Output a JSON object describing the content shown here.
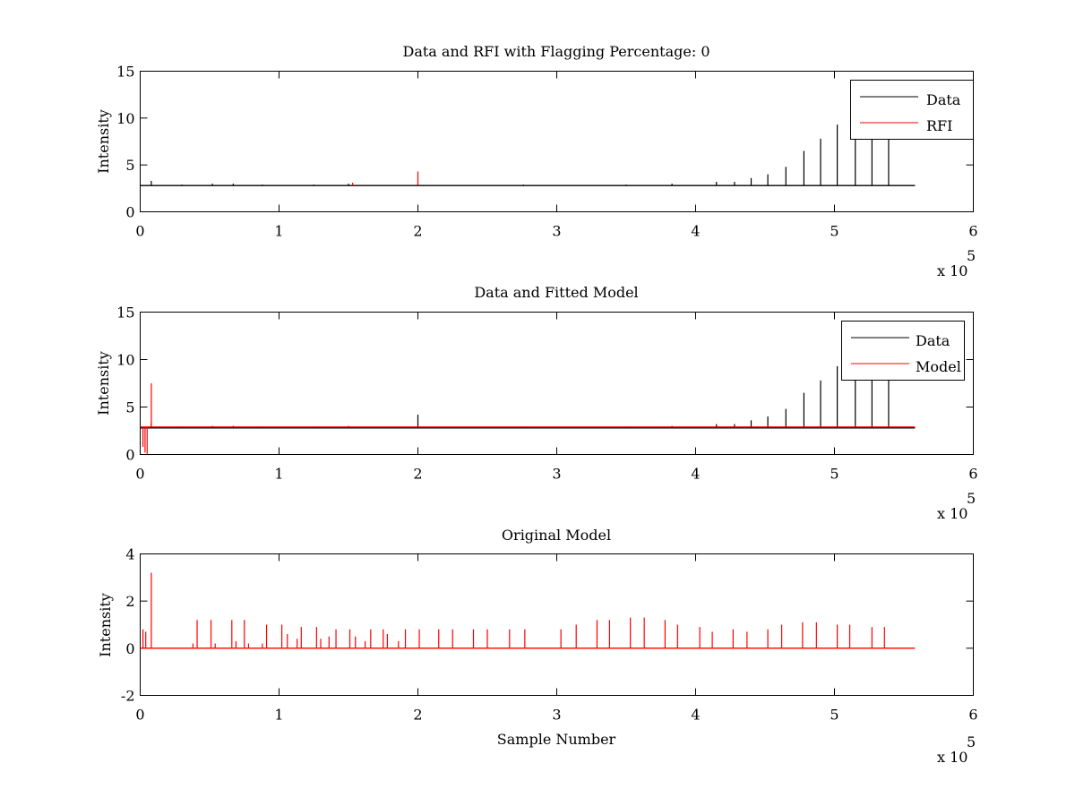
{
  "chart_data": [
    {
      "type": "line",
      "title": "Data and RFI with Flagging Percentage: 0",
      "xlabel": "",
      "ylabel": "Intensity",
      "xlim": [
        0,
        600000
      ],
      "ylim": [
        0,
        15
      ],
      "x_ticks": [
        0,
        1,
        2,
        3,
        4,
        5,
        6
      ],
      "y_ticks": [
        0,
        5,
        10,
        15
      ],
      "x_multiplier": "x 10",
      "x_multiplier_exp": "5",
      "grid": false,
      "legend": {
        "placement": "top-right",
        "entries": [
          {
            "label": "Data",
            "color": "#000000"
          },
          {
            "label": "RFI",
            "color": "#ff0000"
          }
        ]
      },
      "series": [
        {
          "name": "Data",
          "color": "#000000",
          "baseline": 2.8,
          "x_end": 558000,
          "spikes": [
            [
              8000,
              3.3
            ],
            [
              30000,
              2.9
            ],
            [
              52000,
              3.0
            ],
            [
              67000,
              3.0
            ],
            [
              88000,
              2.9
            ],
            [
              125000,
              2.9
            ],
            [
              150000,
              3.0
            ],
            [
              200000,
              3.0
            ],
            [
              276000,
              2.9
            ],
            [
              350000,
              2.9
            ],
            [
              383000,
              3.0
            ],
            [
              415000,
              3.2
            ],
            [
              428000,
              3.2
            ],
            [
              440000,
              3.6
            ],
            [
              452000,
              4.0
            ],
            [
              465000,
              4.8
            ],
            [
              478000,
              6.5
            ],
            [
              490000,
              7.8
            ],
            [
              502000,
              9.3
            ],
            [
              515000,
              10.3
            ],
            [
              527000,
              11.0
            ],
            [
              539000,
              11.6
            ]
          ]
        },
        {
          "name": "RFI",
          "color": "#ff0000",
          "baseline": null,
          "x_end": null,
          "spikes": [
            [
              200000,
              4.3
            ],
            [
              153000,
              3.1
            ]
          ]
        }
      ]
    },
    {
      "type": "line",
      "title": "Data and Fitted Model",
      "xlabel": "",
      "ylabel": "Intensity",
      "xlim": [
        0,
        600000
      ],
      "ylim": [
        0,
        15
      ],
      "x_ticks": [
        0,
        1,
        2,
        3,
        4,
        5,
        6
      ],
      "y_ticks": [
        0,
        5,
        10,
        15
      ],
      "x_multiplier": "x 10",
      "x_multiplier_exp": "5",
      "grid": false,
      "legend": {
        "placement": "top-right",
        "entries": [
          {
            "label": "Data",
            "color": "#000000"
          },
          {
            "label": "Model",
            "color": "#ff0000"
          }
        ]
      },
      "series": [
        {
          "name": "Data",
          "color": "#000000",
          "baseline": 2.8,
          "x_end": 558000,
          "spikes": [
            [
              8000,
              3.3
            ],
            [
              30000,
              2.9
            ],
            [
              52000,
              3.0
            ],
            [
              67000,
              3.0
            ],
            [
              88000,
              2.9
            ],
            [
              125000,
              2.9
            ],
            [
              150000,
              3.0
            ],
            [
              200000,
              4.2
            ],
            [
              276000,
              2.9
            ],
            [
              350000,
              2.9
            ],
            [
              383000,
              3.0
            ],
            [
              415000,
              3.2
            ],
            [
              428000,
              3.2
            ],
            [
              440000,
              3.6
            ],
            [
              452000,
              4.0
            ],
            [
              465000,
              4.8
            ],
            [
              478000,
              6.5
            ],
            [
              490000,
              7.8
            ],
            [
              502000,
              9.3
            ],
            [
              515000,
              10.3
            ],
            [
              527000,
              11.0
            ],
            [
              539000,
              11.6
            ]
          ]
        },
        {
          "name": "Model",
          "color": "#ff0000",
          "baseline": 2.9,
          "x_end": 558000,
          "spikes": [
            [
              2000,
              0.8
            ],
            [
              3500,
              0.2
            ],
            [
              5000,
              0.0
            ],
            [
              8000,
              7.5
            ],
            [
              52000,
              3.0
            ],
            [
              67000,
              3.0
            ],
            [
              150000,
              3.0
            ]
          ]
        }
      ]
    },
    {
      "type": "line",
      "title": "Original Model",
      "xlabel": "Sample Number",
      "ylabel": "Intensity",
      "xlim": [
        0,
        600000
      ],
      "ylim": [
        -2,
        4
      ],
      "x_ticks": [
        0,
        1,
        2,
        3,
        4,
        5,
        6
      ],
      "y_ticks": [
        -2,
        0,
        2,
        4
      ],
      "x_multiplier": "x 10",
      "x_multiplier_exp": "5",
      "grid": false,
      "legend": null,
      "series": [
        {
          "name": "",
          "color": "#ff0000",
          "baseline": 0,
          "x_end": 558000,
          "spikes": [
            [
              2000,
              0.8
            ],
            [
              4000,
              0.7
            ],
            [
              8000,
              3.2
            ],
            [
              38000,
              0.2
            ],
            [
              41000,
              1.2
            ],
            [
              51000,
              1.2
            ],
            [
              54000,
              0.2
            ],
            [
              66000,
              1.2
            ],
            [
              69000,
              0.3
            ],
            [
              75000,
              1.2
            ],
            [
              78000,
              0.2
            ],
            [
              88000,
              0.2
            ],
            [
              91000,
              1.0
            ],
            [
              102000,
              1.0
            ],
            [
              106000,
              0.6
            ],
            [
              113000,
              0.4
            ],
            [
              116000,
              0.9
            ],
            [
              127000,
              0.9
            ],
            [
              130000,
              0.4
            ],
            [
              136000,
              0.5
            ],
            [
              141000,
              0.8
            ],
            [
              151000,
              0.8
            ],
            [
              155000,
              0.5
            ],
            [
              162000,
              0.3
            ],
            [
              166000,
              0.8
            ],
            [
              175000,
              0.8
            ],
            [
              178000,
              0.6
            ],
            [
              186000,
              0.3
            ],
            [
              191000,
              0.8
            ],
            [
              201000,
              0.8
            ],
            [
              215000,
              0.8
            ],
            [
              225000,
              0.8
            ],
            [
              240000,
              0.8
            ],
            [
              250000,
              0.8
            ],
            [
              266000,
              0.8
            ],
            [
              277000,
              0.8
            ],
            [
              303000,
              0.8
            ],
            [
              314000,
              1.0
            ],
            [
              329000,
              1.2
            ],
            [
              338000,
              1.2
            ],
            [
              353000,
              1.3
            ],
            [
              363000,
              1.3
            ],
            [
              378000,
              1.2
            ],
            [
              387000,
              1.0
            ],
            [
              403000,
              0.9
            ],
            [
              412000,
              0.7
            ],
            [
              427000,
              0.8
            ],
            [
              437000,
              0.7
            ],
            [
              452000,
              0.8
            ],
            [
              462000,
              1.0
            ],
            [
              477000,
              1.1
            ],
            [
              487000,
              1.1
            ],
            [
              502000,
              1.0
            ],
            [
              511000,
              1.0
            ],
            [
              527000,
              0.9
            ],
            [
              536000,
              0.9
            ]
          ]
        }
      ]
    }
  ]
}
